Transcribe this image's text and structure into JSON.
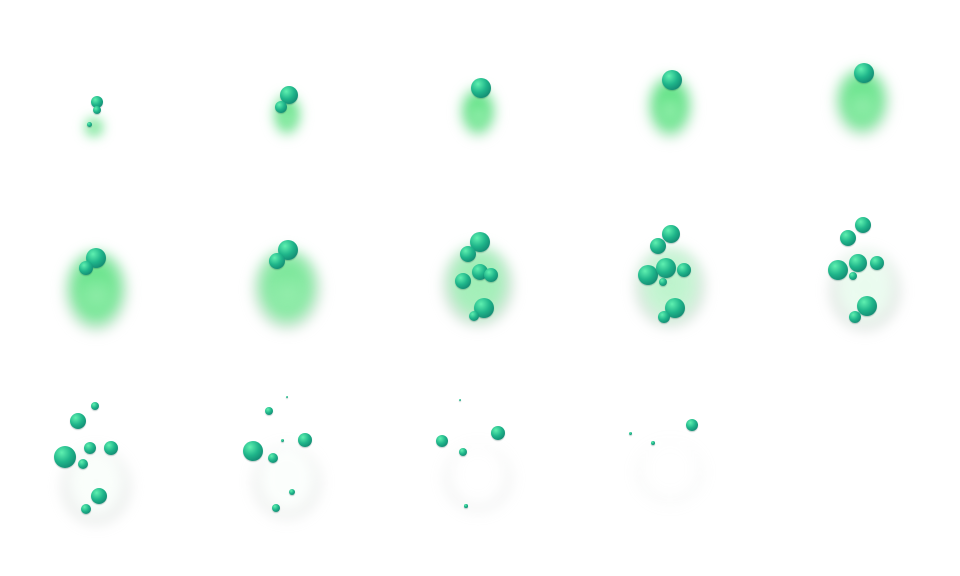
{
  "sprite_sheet": {
    "frame_count": 14,
    "columns": 5,
    "rows": 3,
    "colors": {
      "smoke_green": "#3ddc6a",
      "smoke_light": "#b8f5c8",
      "smoke_grey": "#cfd3d1",
      "bubble_highlight": "#5ff0b0",
      "bubble_mid": "#1fb58a",
      "bubble_dark": "#0b6f64",
      "background": "#ffffff"
    }
  }
}
